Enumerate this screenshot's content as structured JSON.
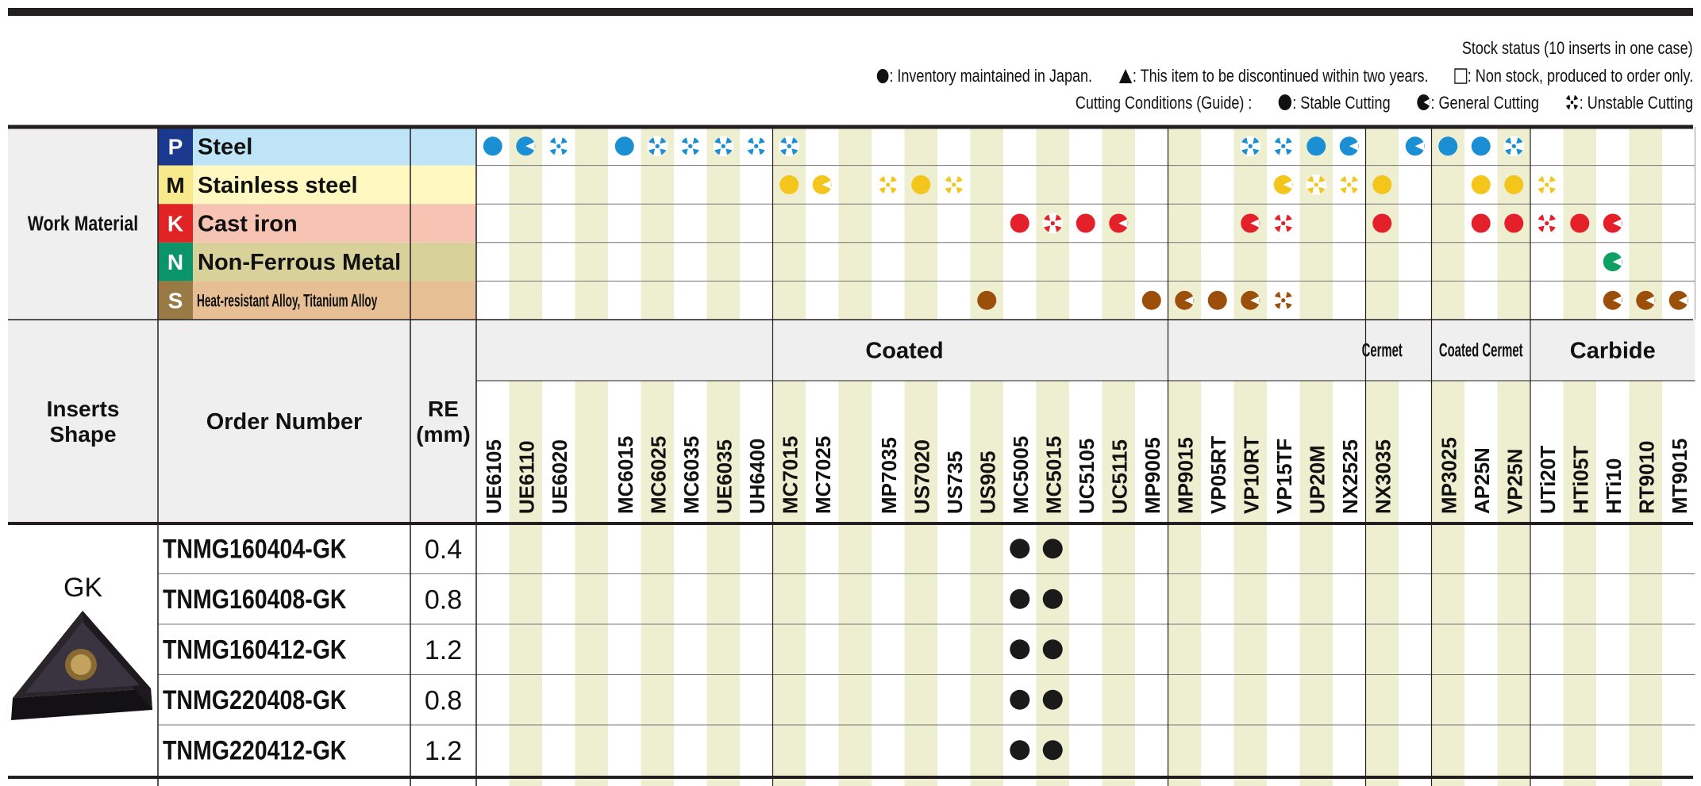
{
  "legend": {
    "stock_title": "Stock status (10 inserts in one case)",
    "inventory": ": Inventory maintained in Japan.",
    "discontinued": ": This item to be discontinued within two years.",
    "non_stock": ": Non stock, produced to order only.",
    "cutting_title": "Cutting Conditions (Guide) :",
    "stable": ": Stable Cutting",
    "general": ": General Cutting",
    "unstable": ": Unstable Cutting"
  },
  "work_material": {
    "label": "Work Material",
    "rows": [
      {
        "code": "P",
        "name": "Steel",
        "code_bg": "#1b3a8f",
        "name_bg": "#bfe4f7",
        "mark": "#1b8fd4"
      },
      {
        "code": "M",
        "name": "Stainless steel",
        "code_bg": "#f7e98c",
        "name_bg": "#fff8c0",
        "mark": "#f4c51a"
      },
      {
        "code": "K",
        "name": "Cast iron",
        "code_bg": "#e02426",
        "name_bg": "#f7c4b3",
        "mark": "#e4202a"
      },
      {
        "code": "N",
        "name": "Non-Ferrous Metal",
        "code_bg": "#0b9467",
        "name_bg": "#d8d29a",
        "mark": "#0e9f63"
      },
      {
        "code": "S",
        "name": "Heat-resistant Alloy, Titanium Alloy",
        "code_bg": "#9a7a44",
        "name_bg": "#e6bf95",
        "mark": "#9c4f0a"
      }
    ]
  },
  "headers": {
    "inserts_shape_line1": "Inserts",
    "inserts_shape_line2": "Shape",
    "order_number": "Order Number",
    "re_line1": "RE",
    "re_line2": "(mm)",
    "groups": [
      {
        "label": "Coated",
        "span": 26
      },
      {
        "label": "Cermet",
        "span": 3
      },
      {
        "label": "Coated Cermet",
        "span": 3
      },
      {
        "label": "Carbide",
        "span": 5
      }
    ]
  },
  "grades": [
    "UE6105",
    "UE6110",
    "UE6020",
    "",
    "MC6015",
    "MC6025",
    "MC6035",
    "UE6035",
    "UH6400",
    "MC7015",
    "MC7025",
    "",
    "MP7035",
    "US7020",
    "US735",
    "US905",
    "MC5005",
    "MC5015",
    "UC5105",
    "UC5115",
    "MP9005",
    "MP9015",
    "VP05RT",
    "VP10RT",
    "VP15TF",
    "UP20M",
    "NX2525",
    "NX3035",
    "",
    "MP3025",
    "AP25N",
    "VP25N",
    "UTi20T",
    "HTi05T",
    "HTi10",
    "RT9010",
    "MT9015"
  ],
  "material_marks": [
    "SGU.SUUUUU.............UUSG.GSSU.....",
    ".........SG.USU.........GUUS..SSU....",
    "................SUSG...GU..S..SSUSG..",
    "..................................G..",
    "...............S....SGSGU.........GGG"
  ],
  "insert": {
    "shape_name": "GK",
    "rows": [
      {
        "order": "TNMG160404-GK",
        "re": "0.4",
        "stock": ".................................................................................................................................................................................................................................................................................................................................................................................................................................................."
      },
      {
        "order": "TNMG160408-GK",
        "re": "0.8"
      },
      {
        "order": "TNMG160412-GK",
        "re": "1.2"
      },
      {
        "order": "TNMG220408-GK",
        "re": "0.8"
      },
      {
        "order": "TNMG220412-GK",
        "re": "1.2"
      }
    ],
    "stock_columns": [
      "MC5005",
      "MC5015"
    ]
  },
  "colors": {
    "stripe": "#eeeed0",
    "header_gray": "#efefef",
    "line": "#231f20"
  }
}
